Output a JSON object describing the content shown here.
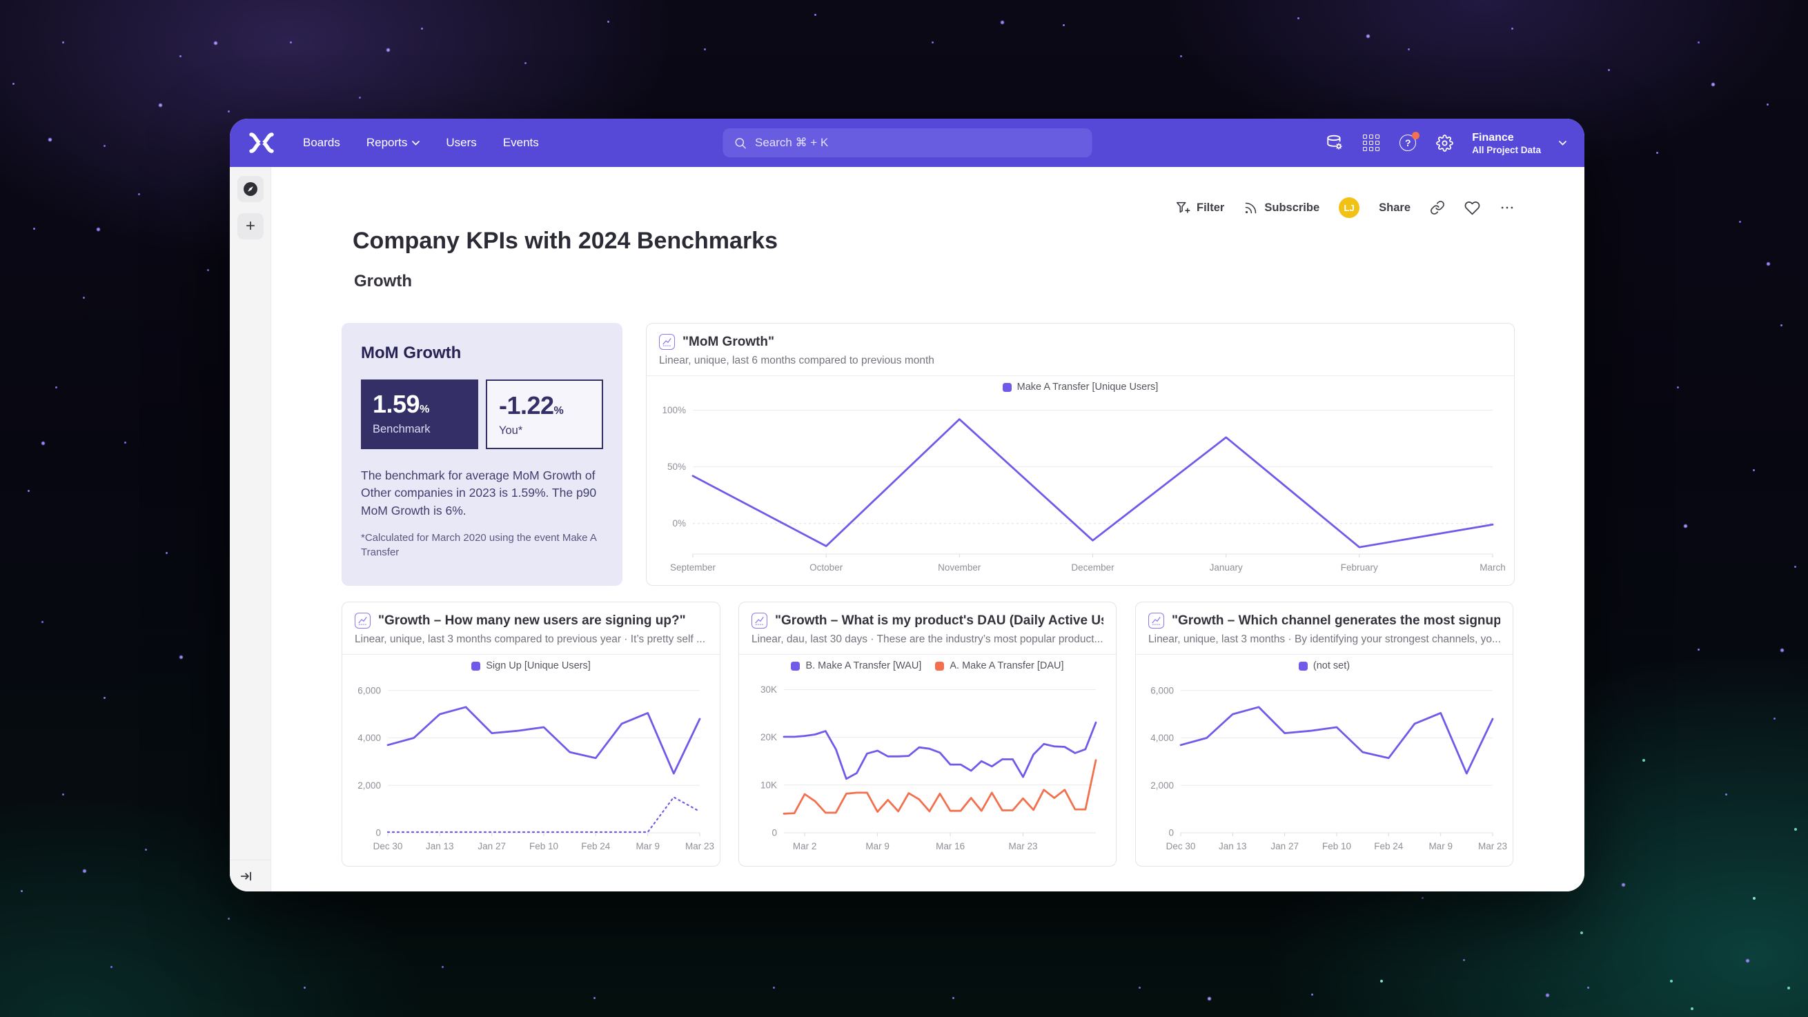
{
  "app": {
    "name": "Mixpanel",
    "accent_color": "#5649d8",
    "line_color": "#6f5aea",
    "line_color_secondary": "#f3704e"
  },
  "nav": {
    "items": [
      {
        "label": "Boards"
      },
      {
        "label": "Reports"
      },
      {
        "label": "Users"
      },
      {
        "label": "Events"
      }
    ],
    "search_placeholder": "Search  ⌘ + K",
    "project_name": "Finance",
    "project_scope": "All Project Data"
  },
  "toolbar": {
    "filter": "Filter",
    "subscribe": "Subscribe",
    "avatar_initials": "LJ",
    "share": "Share"
  },
  "page": {
    "title": "Company KPIs with 2024 Benchmarks",
    "section": "Growth"
  },
  "benchmark_card": {
    "title": "MoM Growth",
    "benchmark_value": "1.59",
    "benchmark_unit": "%",
    "benchmark_label": "Benchmark",
    "you_value": "-1.22",
    "you_unit": "%",
    "you_label": "You*",
    "description": "The benchmark for average MoM Growth of Other companies in 2023 is 1.59%. The p90 MoM Growth is 6%.",
    "footnote": "*Calculated for March 2020 using the event Make A Transfer"
  },
  "chart_data": [
    {
      "id": "mom-growth-line",
      "type": "line",
      "title": "\"MoM Growth\"",
      "subtitle": "Linear, unique, last 6 months compared to previous month",
      "legend": [
        {
          "label": "Make A Transfer [Unique Users]",
          "color": "#6f5aea"
        }
      ],
      "ylim": [
        -27,
        107
      ],
      "yticks": [
        {
          "v": 100,
          "label": "100%"
        },
        {
          "v": 50,
          "label": "50%"
        },
        {
          "v": 0,
          "label": "0%",
          "dashed": true
        }
      ],
      "xticks": [
        {
          "i": 0,
          "label": "September"
        },
        {
          "i": 1,
          "label": "October"
        },
        {
          "i": 2,
          "label": "November"
        },
        {
          "i": 3,
          "label": "December"
        },
        {
          "i": 4,
          "label": "January"
        },
        {
          "i": 5,
          "label": "February"
        },
        {
          "i": 6,
          "label": "March"
        }
      ],
      "series": [
        {
          "name": "Make A Transfer [Unique Users]",
          "color": "#6f5aea",
          "style": "solid",
          "values": [
            42,
            -20,
            92,
            -15,
            76,
            -21,
            -1
          ],
          "unit": "%"
        }
      ]
    },
    {
      "id": "new-users-signing-up",
      "type": "line",
      "title": "\"Growth – How many new users are signing up?\"",
      "subtitle": "Linear, unique, last 3 months compared to previous year · It’s pretty self ...",
      "legend": [
        {
          "label": "Sign Up [Unique Users]",
          "color": "#6f5aea"
        }
      ],
      "ylim": [
        0,
        6400
      ],
      "yticks": [
        {
          "v": 6000,
          "label": "6,000"
        },
        {
          "v": 4000,
          "label": "4,000"
        },
        {
          "v": 2000,
          "label": "2,000"
        },
        {
          "v": 0,
          "label": "0"
        }
      ],
      "xticks": [
        {
          "i": 0,
          "label": "Dec 30"
        },
        {
          "i": 2,
          "label": "Jan 13"
        },
        {
          "i": 4,
          "label": "Jan 27"
        },
        {
          "i": 6,
          "label": "Feb 10"
        },
        {
          "i": 8,
          "label": "Feb 24"
        },
        {
          "i": 10,
          "label": "Mar 9"
        },
        {
          "i": 12,
          "label": "Mar 23"
        }
      ],
      "series": [
        {
          "name": "Sign Up [Unique Users]",
          "color": "#6f5aea",
          "style": "solid",
          "values": [
            3700,
            4000,
            5000,
            5300,
            4200,
            4300,
            4450,
            3400,
            3150,
            4600,
            5050,
            2500,
            4800
          ]
        },
        {
          "name": "Sign Up [Unique Users] — previous year",
          "color": "#6f5aea",
          "style": "dotted",
          "values": [
            30,
            30,
            30,
            30,
            30,
            30,
            30,
            30,
            30,
            30,
            30,
            1500,
            900
          ]
        }
      ]
    },
    {
      "id": "product-dau",
      "type": "line",
      "title": "\"Growth – What is my product's DAU (Daily Active Us...",
      "subtitle": "Linear, dau, last 30 days · These are the industry’s most popular product...",
      "legend": [
        {
          "label": "B. Make A Transfer [WAU]",
          "color": "#6f5aea"
        },
        {
          "label": "A. Make A Transfer [DAU]",
          "color": "#f3704e"
        }
      ],
      "ylim": [
        0,
        31800
      ],
      "yticks": [
        {
          "v": 30000,
          "label": "30K"
        },
        {
          "v": 20000,
          "label": "20K"
        },
        {
          "v": 10000,
          "label": "10K"
        },
        {
          "v": 0,
          "label": "0"
        }
      ],
      "xticks": [
        {
          "i": 2,
          "label": "Mar 2"
        },
        {
          "i": 9,
          "label": "Mar 9"
        },
        {
          "i": 16,
          "label": "Mar 16"
        },
        {
          "i": 23,
          "label": "Mar 23"
        }
      ],
      "series": [
        {
          "name": "B. Make A Transfer [WAU]",
          "color": "#6f5aea",
          "style": "solid",
          "values": [
            20100,
            20100,
            20300,
            20600,
            21300,
            17500,
            11300,
            12500,
            16600,
            17200,
            16000,
            16000,
            16100,
            17900,
            17600,
            16800,
            14300,
            14300,
            13000,
            15000,
            13900,
            15400,
            15400,
            11700,
            16400,
            18600,
            18100,
            18000,
            16700,
            17500,
            23100
          ]
        },
        {
          "name": "A. Make A Transfer [DAU]",
          "color": "#f3704e",
          "style": "solid",
          "values": [
            4000,
            4100,
            8100,
            6600,
            4200,
            4200,
            8200,
            8400,
            8400,
            4400,
            6900,
            4500,
            8300,
            7000,
            4500,
            8200,
            4600,
            4600,
            7300,
            4600,
            8400,
            4700,
            4700,
            7200,
            4800,
            9000,
            7300,
            9000,
            4900,
            4900,
            15200
          ]
        }
      ]
    },
    {
      "id": "channel-signups",
      "type": "line",
      "title": "\"Growth – Which channel generates the most signup...",
      "subtitle": "Linear, unique, last 3 months · By identifying your strongest channels, yo...",
      "legend": [
        {
          "label": "(not set)",
          "color": "#6f5aea"
        }
      ],
      "ylim": [
        0,
        6400
      ],
      "yticks": [
        {
          "v": 6000,
          "label": "6,000"
        },
        {
          "v": 4000,
          "label": "4,000"
        },
        {
          "v": 2000,
          "label": "2,000"
        },
        {
          "v": 0,
          "label": "0"
        }
      ],
      "xticks": [
        {
          "i": 0,
          "label": "Dec 30"
        },
        {
          "i": 2,
          "label": "Jan 13"
        },
        {
          "i": 4,
          "label": "Jan 27"
        },
        {
          "i": 6,
          "label": "Feb 10"
        },
        {
          "i": 8,
          "label": "Feb 24"
        },
        {
          "i": 10,
          "label": "Mar 9"
        },
        {
          "i": 12,
          "label": "Mar 23"
        }
      ],
      "series": [
        {
          "name": "(not set)",
          "color": "#6f5aea",
          "style": "solid",
          "values": [
            3700,
            4000,
            5000,
            5300,
            4200,
            4300,
            4450,
            3400,
            3150,
            4600,
            5050,
            2500,
            4800
          ]
        }
      ]
    }
  ]
}
